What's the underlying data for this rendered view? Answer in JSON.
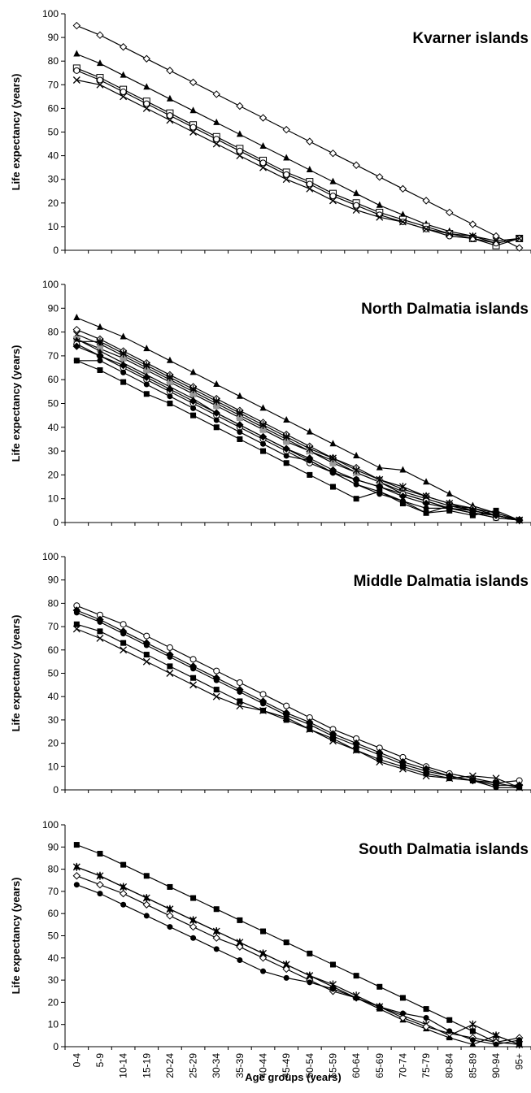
{
  "figure": {
    "xlabel": "Age groups (years)"
  },
  "chart_data": [
    {
      "type": "line",
      "title": "Kvarner islands",
      "ylabel": "Life expectancy (years)",
      "xlabel": "",
      "ylim": [
        0,
        100
      ],
      "yticks": [
        0,
        10,
        20,
        30,
        40,
        50,
        60,
        70,
        80,
        90,
        100
      ],
      "grid": false,
      "categories": [
        "0-4",
        "5-9",
        "10-14",
        "15-19",
        "20-24",
        "25-29",
        "30-34",
        "35-39",
        "40-44",
        "45-49",
        "50-54",
        "55-59",
        "60-64",
        "65-69",
        "70-74",
        "75-79",
        "80-84",
        "85-89",
        "90-94",
        "95+"
      ],
      "series": [
        {
          "marker": "diamond-open",
          "values": [
            95,
            91,
            86,
            81,
            76,
            71,
            66,
            61,
            56,
            51,
            46,
            41,
            36,
            31,
            26,
            21,
            16,
            11,
            6,
            1
          ]
        },
        {
          "marker": "triangle-filled",
          "values": [
            83,
            79,
            74,
            69,
            64,
            59,
            54,
            49,
            44,
            39,
            34,
            29,
            24,
            19,
            15,
            11,
            8,
            6,
            3,
            5
          ]
        },
        {
          "marker": "square-open",
          "values": [
            77,
            73,
            68,
            63,
            58,
            53,
            48,
            43,
            38,
            33,
            29,
            24,
            20,
            16,
            13,
            10,
            7,
            5,
            2,
            5
          ]
        },
        {
          "marker": "circle-open",
          "values": [
            76,
            72,
            67,
            62,
            57,
            52,
            47,
            42,
            37,
            32,
            28,
            23,
            19,
            15,
            12,
            9,
            6,
            5,
            3,
            5
          ]
        },
        {
          "marker": "x",
          "values": [
            72,
            70,
            65,
            60,
            55,
            50,
            45,
            40,
            35,
            30,
            26,
            21,
            17,
            14,
            12,
            9,
            7,
            6,
            4,
            5
          ]
        }
      ]
    },
    {
      "type": "line",
      "title": "North Dalmatia islands",
      "ylabel": "Life expectancy (years)",
      "xlabel": "",
      "ylim": [
        0,
        100
      ],
      "yticks": [
        0,
        10,
        20,
        30,
        40,
        50,
        60,
        70,
        80,
        90,
        100
      ],
      "grid": false,
      "categories": [
        "0-4",
        "5-9",
        "10-14",
        "15-19",
        "20-24",
        "25-29",
        "30-34",
        "35-39",
        "40-44",
        "45-49",
        "50-54",
        "55-59",
        "60-64",
        "65-69",
        "70-74",
        "75-79",
        "80-84",
        "85-89",
        "90-94",
        "95+"
      ],
      "series": [
        {
          "marker": "triangle-filled",
          "values": [
            86,
            82,
            78,
            73,
            68,
            63,
            58,
            53,
            48,
            43,
            38,
            33,
            28,
            23,
            22,
            17,
            12,
            7,
            4,
            1
          ]
        },
        {
          "marker": "diamond-open",
          "values": [
            81,
            77,
            72,
            67,
            62,
            57,
            52,
            47,
            42,
            37,
            32,
            27,
            23,
            18,
            14,
            11,
            8,
            6,
            4,
            1
          ]
        },
        {
          "marker": "x",
          "values": [
            79,
            75,
            70,
            65,
            60,
            55,
            50,
            45,
            40,
            35,
            30,
            26,
            21,
            17,
            13,
            10,
            7,
            5,
            3,
            1
          ]
        },
        {
          "marker": "square-gray",
          "values": [
            77,
            73,
            69,
            64,
            59,
            54,
            49,
            44,
            39,
            34,
            30,
            25,
            21,
            17,
            12,
            9,
            6,
            4,
            2,
            1
          ]
        },
        {
          "marker": "asterisk",
          "values": [
            76,
            76,
            71,
            66,
            61,
            56,
            51,
            46,
            41,
            36,
            31,
            27,
            22,
            18,
            15,
            11,
            8,
            5,
            3,
            1
          ]
        },
        {
          "marker": "circle-open",
          "values": [
            75,
            70,
            65,
            60,
            55,
            50,
            45,
            40,
            35,
            30,
            25,
            21,
            18,
            15,
            12,
            9,
            6,
            4,
            2,
            1
          ]
        },
        {
          "marker": "diamond-filled",
          "values": [
            74,
            70,
            66,
            61,
            56,
            51,
            46,
            41,
            36,
            31,
            27,
            22,
            18,
            15,
            11,
            8,
            6,
            5,
            3,
            1
          ]
        },
        {
          "marker": "triangle-small",
          "values": [
            77,
            72,
            67,
            62,
            57,
            52,
            46,
            41,
            36,
            31,
            26,
            21,
            16,
            13,
            9,
            4,
            7,
            6,
            3,
            1
          ]
        },
        {
          "marker": "square-filled",
          "values": [
            68,
            64,
            59,
            54,
            50,
            45,
            40,
            35,
            30,
            25,
            20,
            15,
            10,
            13,
            8,
            4,
            5,
            3,
            5,
            1
          ]
        },
        {
          "marker": "circle-filled",
          "values": [
            68,
            68,
            63,
            58,
            53,
            48,
            43,
            38,
            33,
            28,
            26,
            21,
            16,
            12,
            9,
            6,
            6,
            4,
            3,
            1
          ]
        }
      ]
    },
    {
      "type": "line",
      "title": "Middle Dalmatia islands",
      "ylabel": "Life expectancy (years)",
      "xlabel": "",
      "ylim": [
        0,
        100
      ],
      "yticks": [
        0,
        10,
        20,
        30,
        40,
        50,
        60,
        70,
        80,
        90,
        100
      ],
      "grid": false,
      "categories": [
        "0-4",
        "5-9",
        "10-14",
        "15-19",
        "20-24",
        "25-29",
        "30-34",
        "35-39",
        "40-44",
        "45-49",
        "50-54",
        "55-59",
        "60-64",
        "65-69",
        "70-74",
        "75-79",
        "80-84",
        "85-89",
        "90-94",
        "95+"
      ],
      "series": [
        {
          "marker": "circle-open",
          "values": [
            79,
            75,
            71,
            66,
            61,
            56,
            51,
            46,
            41,
            36,
            31,
            26,
            22,
            18,
            14,
            10,
            7,
            5,
            3,
            4
          ]
        },
        {
          "marker": "diamond-filled",
          "values": [
            77,
            73,
            68,
            63,
            58,
            53,
            48,
            43,
            38,
            33,
            29,
            24,
            20,
            16,
            12,
            9,
            6,
            4,
            2,
            2
          ]
        },
        {
          "marker": "circle-filled",
          "values": [
            76,
            72,
            67,
            62,
            57,
            52,
            47,
            42,
            37,
            32,
            28,
            23,
            19,
            15,
            11,
            8,
            6,
            4,
            1,
            1
          ]
        },
        {
          "marker": "square-filled",
          "values": [
            71,
            68,
            63,
            58,
            53,
            48,
            43,
            38,
            34,
            30,
            26,
            22,
            17,
            13,
            10,
            7,
            5,
            4,
            3,
            1
          ]
        },
        {
          "marker": "x",
          "values": [
            69,
            65,
            60,
            55,
            50,
            45,
            40,
            36,
            34,
            31,
            26,
            21,
            17,
            12,
            9,
            6,
            5,
            6,
            5,
            1
          ]
        }
      ]
    },
    {
      "type": "line",
      "title": "South Dalmatia islands",
      "ylabel": "Life expectancy (years)",
      "xlabel": "Age groups (years)",
      "ylim": [
        0,
        100
      ],
      "yticks": [
        0,
        10,
        20,
        30,
        40,
        50,
        60,
        70,
        80,
        90,
        100
      ],
      "grid": false,
      "categories": [
        "0-4",
        "5-9",
        "10-14",
        "15-19",
        "20-24",
        "25-29",
        "30-34",
        "35-39",
        "40-44",
        "45-49",
        "50-54",
        "55-59",
        "60-64",
        "65-69",
        "70-74",
        "75-79",
        "80-84",
        "85-89",
        "90-94",
        "95+"
      ],
      "series": [
        {
          "marker": "square-filled",
          "values": [
            91,
            87,
            82,
            77,
            72,
            67,
            62,
            57,
            52,
            47,
            42,
            37,
            32,
            27,
            22,
            17,
            12,
            7,
            2,
            1
          ]
        },
        {
          "marker": "asterisk",
          "values": [
            81,
            77,
            72,
            67,
            62,
            57,
            52,
            47,
            42,
            37,
            32,
            28,
            23,
            18,
            14,
            10,
            5,
            10,
            5,
            1
          ]
        },
        {
          "marker": "triangle-filled",
          "values": [
            81,
            77,
            72,
            67,
            62,
            57,
            52,
            47,
            42,
            37,
            32,
            27,
            22,
            17,
            12,
            8,
            4,
            1,
            5,
            1
          ]
        },
        {
          "marker": "diamond-open",
          "values": [
            77,
            73,
            69,
            64,
            59,
            54,
            49,
            45,
            40,
            35,
            30,
            25,
            22,
            18,
            13,
            9,
            6,
            4,
            2,
            4
          ]
        },
        {
          "marker": "circle-filled",
          "values": [
            73,
            69,
            64,
            59,
            54,
            49,
            44,
            39,
            34,
            31,
            29,
            26,
            22,
            18,
            15,
            13,
            7,
            3,
            1,
            3
          ]
        }
      ]
    }
  ]
}
